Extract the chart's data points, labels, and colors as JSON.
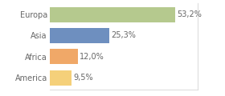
{
  "categories": [
    "Europa",
    "Asia",
    "Africa",
    "America"
  ],
  "values": [
    53.2,
    25.3,
    12.0,
    9.5
  ],
  "labels": [
    "53,2%",
    "25,3%",
    "12,0%",
    "9,5%"
  ],
  "colors": [
    "#b5c98e",
    "#6e8fbf",
    "#f0a868",
    "#f5d07a"
  ],
  "background_color": "#ffffff",
  "xlim": [
    0,
    63
  ],
  "bar_height": 0.72,
  "label_fontsize": 7,
  "tick_fontsize": 7,
  "label_color": "#666666",
  "tick_color": "#666666"
}
